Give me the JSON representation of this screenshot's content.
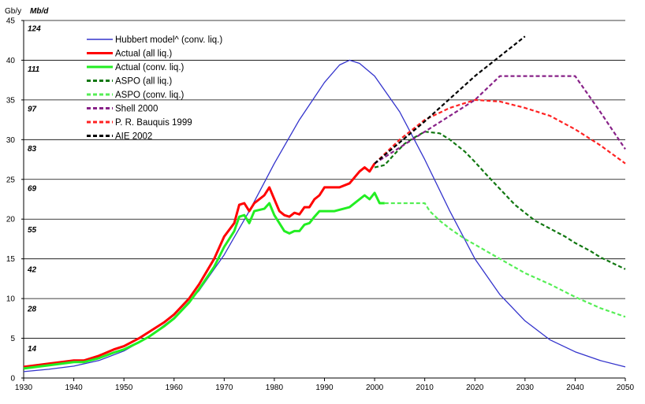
{
  "chart_data": {
    "type": "line",
    "unit_left": "Gb/y",
    "unit_right": "Mb/d",
    "xlim": [
      1930,
      2050
    ],
    "ylim": [
      0,
      45
    ],
    "x_ticks": [
      1930,
      1940,
      1950,
      1960,
      1970,
      1980,
      1990,
      2000,
      2010,
      2020,
      2030,
      2040,
      2050
    ],
    "y_ticks": [
      0,
      5,
      10,
      15,
      20,
      25,
      30,
      35,
      40,
      45
    ],
    "mbd_ticks": [
      {
        "label": "14",
        "y": 3.7
      },
      {
        "label": "28",
        "y": 8.7
      },
      {
        "label": "42",
        "y": 13.7
      },
      {
        "label": "55",
        "y": 18.7
      },
      {
        "label": "69",
        "y": 23.9
      },
      {
        "label": "83",
        "y": 28.9
      },
      {
        "label": "97",
        "y": 33.9
      },
      {
        "label": "111",
        "y": 38.9
      },
      {
        "label": "124",
        "y": 44.0
      }
    ],
    "grid": true,
    "legend_position": "top-left",
    "series": [
      {
        "name": "Hubbert model^ (conv. liq.)",
        "color": "#3333cc",
        "style": "solid",
        "width": 1.3,
        "points": [
          [
            1930,
            0.8
          ],
          [
            1935,
            1.1
          ],
          [
            1940,
            1.5
          ],
          [
            1945,
            2.2
          ],
          [
            1950,
            3.4
          ],
          [
            1955,
            5.2
          ],
          [
            1960,
            7.6
          ],
          [
            1965,
            11.0
          ],
          [
            1970,
            15.5
          ],
          [
            1975,
            21.0
          ],
          [
            1980,
            27.0
          ],
          [
            1985,
            32.5
          ],
          [
            1990,
            37.2
          ],
          [
            1993,
            39.4
          ],
          [
            1995,
            40.0
          ],
          [
            1997,
            39.6
          ],
          [
            2000,
            38.0
          ],
          [
            2005,
            33.5
          ],
          [
            2010,
            27.5
          ],
          [
            2015,
            21.0
          ],
          [
            2020,
            15.0
          ],
          [
            2025,
            10.5
          ],
          [
            2030,
            7.2
          ],
          [
            2035,
            4.8
          ],
          [
            2040,
            3.3
          ],
          [
            2045,
            2.2
          ],
          [
            2050,
            1.4
          ]
        ]
      },
      {
        "name": "Actual (all liq.)",
        "color": "#ff0000",
        "style": "solid",
        "width": 3,
        "points": [
          [
            1930,
            1.4
          ],
          [
            1935,
            1.8
          ],
          [
            1940,
            2.2
          ],
          [
            1942,
            2.2
          ],
          [
            1945,
            2.8
          ],
          [
            1948,
            3.6
          ],
          [
            1950,
            4.0
          ],
          [
            1953,
            5.0
          ],
          [
            1955,
            5.8
          ],
          [
            1958,
            7.0
          ],
          [
            1960,
            8.0
          ],
          [
            1963,
            10.0
          ],
          [
            1965,
            11.8
          ],
          [
            1968,
            15.0
          ],
          [
            1970,
            17.8
          ],
          [
            1972,
            19.5
          ],
          [
            1973,
            21.8
          ],
          [
            1974,
            22.0
          ],
          [
            1975,
            21.0
          ],
          [
            1976,
            22.0
          ],
          [
            1978,
            23.0
          ],
          [
            1979,
            24.0
          ],
          [
            1980,
            22.5
          ],
          [
            1981,
            21.0
          ],
          [
            1982,
            20.5
          ],
          [
            1983,
            20.3
          ],
          [
            1984,
            20.8
          ],
          [
            1985,
            20.6
          ],
          [
            1986,
            21.5
          ],
          [
            1987,
            21.5
          ],
          [
            1988,
            22.5
          ],
          [
            1989,
            23.0
          ],
          [
            1990,
            24.0
          ],
          [
            1993,
            24.0
          ],
          [
            1995,
            24.5
          ],
          [
            1997,
            26.0
          ],
          [
            1998,
            26.5
          ],
          [
            1999,
            26.0
          ],
          [
            2000,
            27.0
          ]
        ]
      },
      {
        "name": "Actual (conv. liq.)",
        "color": "#22ee22",
        "style": "solid",
        "width": 3,
        "points": [
          [
            1930,
            1.2
          ],
          [
            1935,
            1.6
          ],
          [
            1940,
            2.0
          ],
          [
            1942,
            2.0
          ],
          [
            1945,
            2.5
          ],
          [
            1948,
            3.2
          ],
          [
            1950,
            3.6
          ],
          [
            1953,
            4.5
          ],
          [
            1955,
            5.2
          ],
          [
            1958,
            6.5
          ],
          [
            1960,
            7.5
          ],
          [
            1963,
            9.5
          ],
          [
            1965,
            11.2
          ],
          [
            1968,
            14.0
          ],
          [
            1970,
            16.5
          ],
          [
            1972,
            18.5
          ],
          [
            1973,
            20.3
          ],
          [
            1974,
            20.5
          ],
          [
            1975,
            19.5
          ],
          [
            1976,
            21.0
          ],
          [
            1978,
            21.3
          ],
          [
            1979,
            22.0
          ],
          [
            1980,
            20.5
          ],
          [
            1981,
            19.5
          ],
          [
            1982,
            18.5
          ],
          [
            1983,
            18.2
          ],
          [
            1984,
            18.5
          ],
          [
            1985,
            18.5
          ],
          [
            1986,
            19.3
          ],
          [
            1987,
            19.5
          ],
          [
            1988,
            20.3
          ],
          [
            1989,
            21.0
          ],
          [
            1992,
            21.0
          ],
          [
            1995,
            21.5
          ],
          [
            1997,
            22.5
          ],
          [
            1998,
            23.0
          ],
          [
            1999,
            22.5
          ],
          [
            2000,
            23.3
          ],
          [
            2001,
            22.0
          ],
          [
            2002,
            22.0
          ]
        ]
      },
      {
        "name": "ASPO (all liq.)",
        "color": "#117711",
        "style": "dashed",
        "width": 2.2,
        "points": [
          [
            2000,
            26.5
          ],
          [
            2002,
            26.8
          ],
          [
            2004,
            28.2
          ],
          [
            2006,
            29.5
          ],
          [
            2008,
            30.3
          ],
          [
            2010,
            31.0
          ],
          [
            2013,
            30.8
          ],
          [
            2015,
            30.0
          ],
          [
            2018,
            28.5
          ],
          [
            2020,
            27.2
          ],
          [
            2022,
            25.8
          ],
          [
            2025,
            23.8
          ],
          [
            2028,
            21.8
          ],
          [
            2030,
            20.8
          ],
          [
            2032,
            19.8
          ],
          [
            2035,
            18.8
          ],
          [
            2038,
            17.8
          ],
          [
            2040,
            17.0
          ],
          [
            2043,
            16.0
          ],
          [
            2045,
            15.2
          ],
          [
            2048,
            14.3
          ],
          [
            2050,
            13.7
          ]
        ]
      },
      {
        "name": "ASPO (conv. liq.)",
        "color": "#55ee55",
        "style": "dashed",
        "width": 2.2,
        "points": [
          [
            2002,
            22.0
          ],
          [
            2010,
            22.0
          ],
          [
            2011,
            21.0
          ],
          [
            2013,
            19.8
          ],
          [
            2015,
            18.8
          ],
          [
            2018,
            17.5
          ],
          [
            2020,
            16.8
          ],
          [
            2025,
            15.0
          ],
          [
            2030,
            13.2
          ],
          [
            2035,
            11.8
          ],
          [
            2040,
            10.2
          ],
          [
            2045,
            8.8
          ],
          [
            2050,
            7.7
          ]
        ]
      },
      {
        "name": "Shell 2000",
        "color": "#882288",
        "style": "dashed",
        "width": 2.2,
        "points": [
          [
            2000,
            27.0
          ],
          [
            2010,
            31.0
          ],
          [
            2015,
            33.0
          ],
          [
            2020,
            35.0
          ],
          [
            2025,
            38.0
          ],
          [
            2040,
            38.0
          ],
          [
            2045,
            33.5
          ],
          [
            2050,
            28.8
          ]
        ]
      },
      {
        "name": "P. R. Bauquis 1999",
        "color": "#ff2222",
        "style": "dashed",
        "width": 2.2,
        "points": [
          [
            2000,
            27.0
          ],
          [
            2005,
            30.0
          ],
          [
            2010,
            32.5
          ],
          [
            2015,
            34.0
          ],
          [
            2020,
            35.0
          ],
          [
            2025,
            34.8
          ],
          [
            2030,
            34.0
          ],
          [
            2035,
            33.0
          ],
          [
            2040,
            31.3
          ],
          [
            2045,
            29.3
          ],
          [
            2050,
            27.0
          ]
        ]
      },
      {
        "name": "AIE 2002",
        "color": "#000000",
        "style": "dashed",
        "width": 2.2,
        "points": [
          [
            2000,
            27.0
          ],
          [
            2010,
            32.3
          ],
          [
            2020,
            38.0
          ],
          [
            2030,
            43.0
          ]
        ]
      }
    ]
  }
}
